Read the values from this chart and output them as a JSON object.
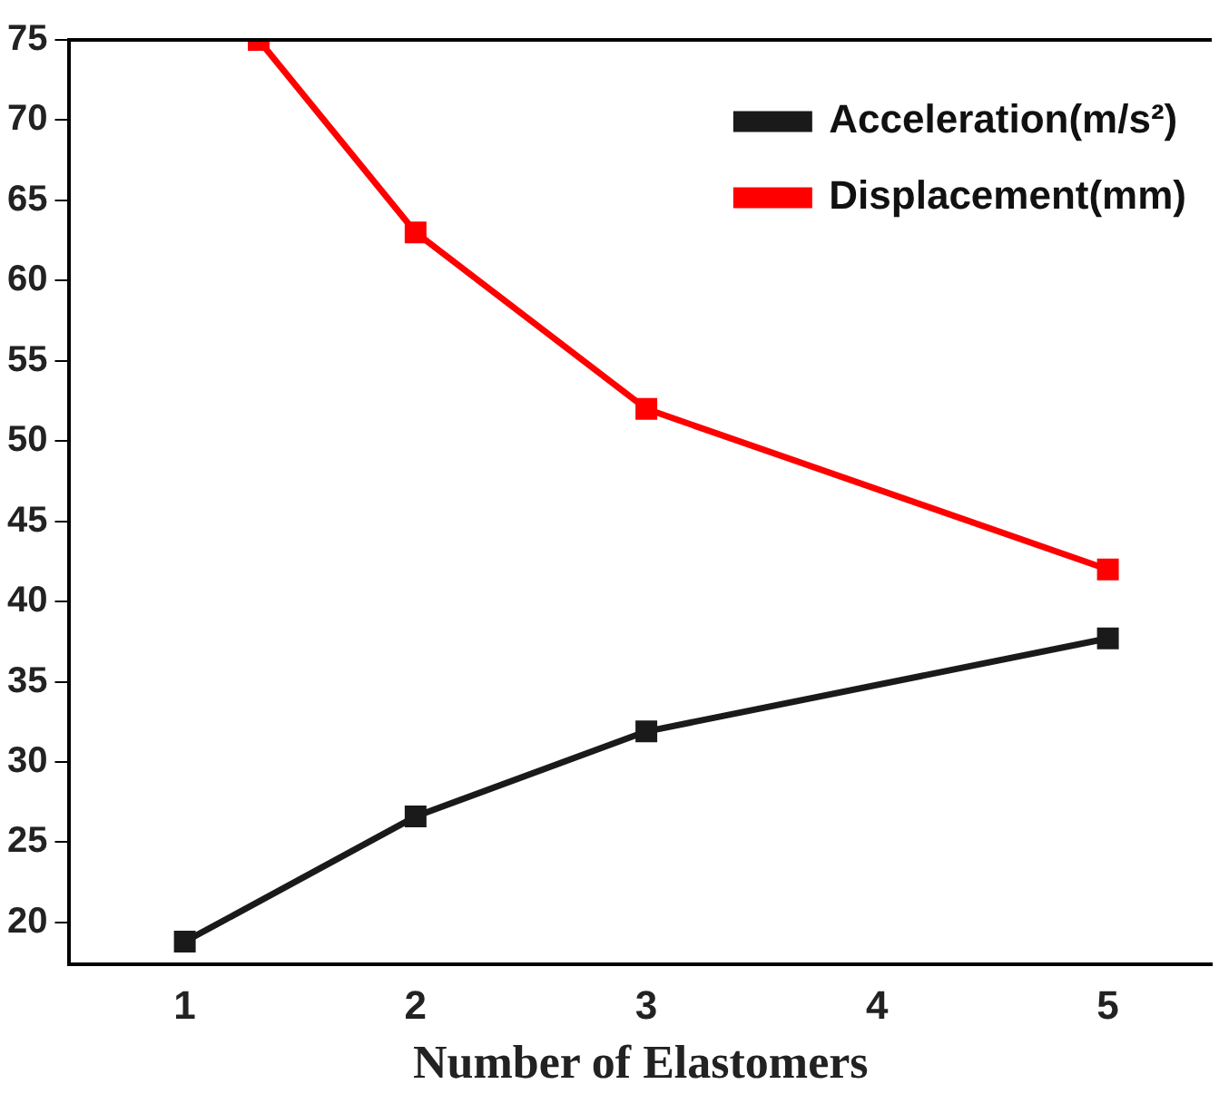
{
  "chart_data": {
    "type": "line",
    "xlabel": "Number of Elastomers",
    "x": [
      1,
      2,
      3,
      5
    ],
    "series": [
      {
        "name": "Acceleration(m/s²)",
        "color": "#1a1a1a",
        "values": [
          18.8,
          26.6,
          31.9,
          37.7
        ]
      },
      {
        "name": "Displacement(mm)",
        "color": "#ff0000",
        "x": [
          1.32,
          2,
          3,
          5
        ],
        "values": [
          75,
          63,
          52,
          42
        ]
      }
    ],
    "xlim": [
      0.5,
      5.45
    ],
    "xticks": [
      1,
      2,
      3,
      4,
      5
    ],
    "ylim": [
      17.4,
      75
    ],
    "yticks": [
      20,
      25,
      30,
      35,
      40,
      45,
      50,
      55,
      60,
      65,
      70,
      75
    ],
    "grid": false,
    "legend": "top right",
    "marker": "square",
    "line_style": "solid"
  }
}
